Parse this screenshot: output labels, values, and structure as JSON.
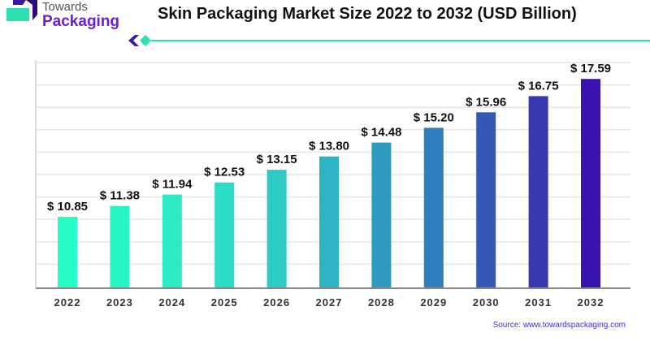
{
  "brand": {
    "line1": "Towards",
    "line2": "Packaging",
    "colors": {
      "purple": "#3c1a9e",
      "teal": "#2de0b0"
    }
  },
  "source": "Source: www.towardspackaging.com",
  "chart_data": {
    "type": "bar",
    "title": "Skin Packaging Market Size 2022 to 2032 (USD Billion)",
    "categories": [
      "2022",
      "2023",
      "2024",
      "2025",
      "2026",
      "2027",
      "2028",
      "2029",
      "2030",
      "2031",
      "2032"
    ],
    "values": [
      10.85,
      11.38,
      11.94,
      12.53,
      13.15,
      13.8,
      14.48,
      15.2,
      15.96,
      16.75,
      17.59
    ],
    "data_labels": [
      "$ 10.85",
      "$ 11.38",
      "$ 11.94",
      "$ 12.53",
      "$ 13.15",
      "$ 13.80",
      "$ 14.48",
      "$ 15.20",
      "$ 15.96",
      "$ 16.75",
      "$ 17.59"
    ],
    "colors": [
      "#27fcc4",
      "#27f5c4",
      "#2beac4",
      "#2bdcc6",
      "#2dcac6",
      "#2db4c4",
      "#2e9cc0",
      "#2f7fbc",
      "#3358b8",
      "#3838b0",
      "#3a12b0"
    ],
    "xlabel": "",
    "ylabel": "",
    "grid": true,
    "legend": "none"
  }
}
